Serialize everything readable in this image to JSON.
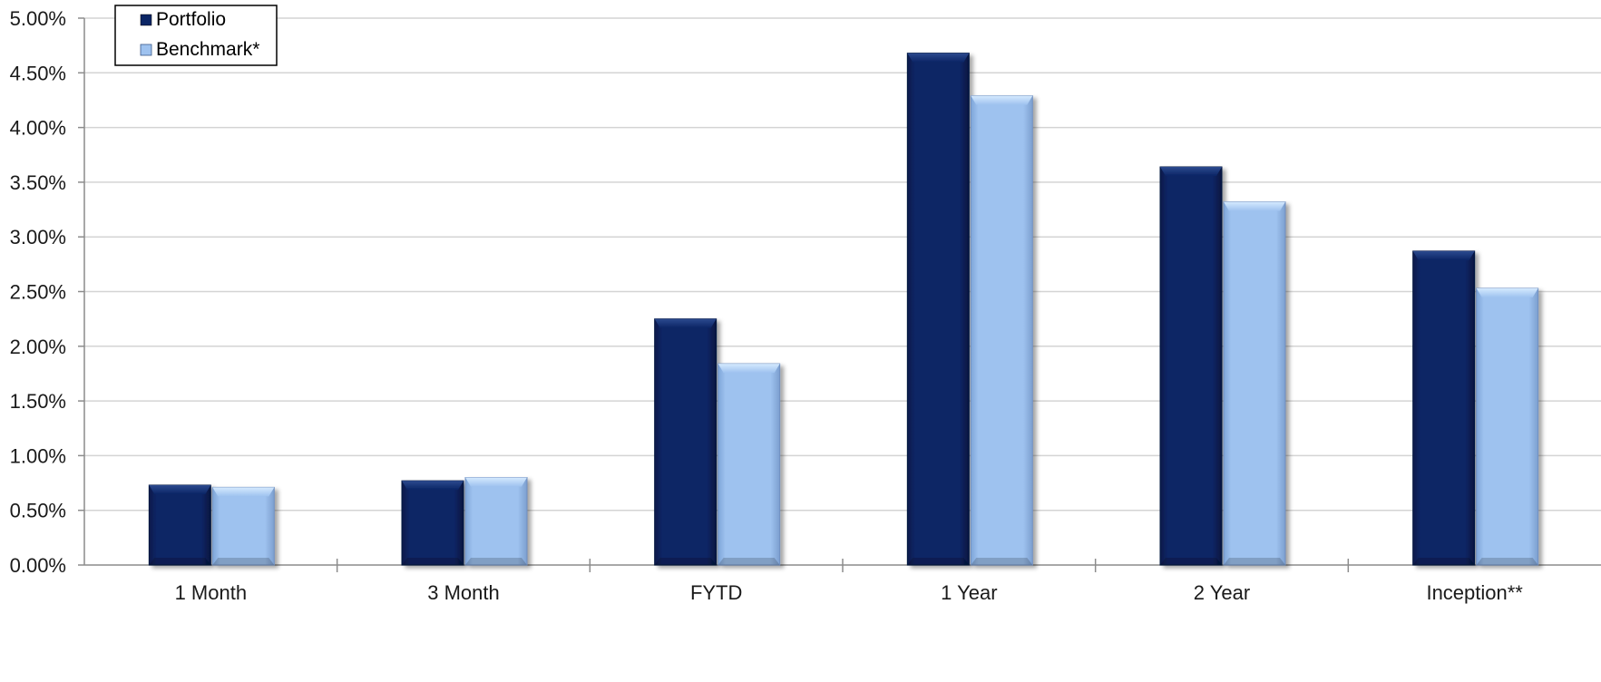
{
  "chart_data": {
    "type": "bar",
    "title": "",
    "xlabel": "",
    "ylabel": "",
    "categories": [
      "1 Month",
      "3 Month",
      "FYTD",
      "1 Year",
      "2 Year",
      "Inception**"
    ],
    "series": [
      {
        "name": "Portfolio",
        "color": "#0b2565",
        "values": [
          0.73,
          0.77,
          2.25,
          4.68,
          3.64,
          2.87
        ]
      },
      {
        "name": "Benchmark*",
        "color": "#9ec2ef",
        "values": [
          0.71,
          0.8,
          1.84,
          4.29,
          3.32,
          2.53
        ]
      }
    ],
    "ylim": [
      0,
      5
    ],
    "yticks": [
      "0.00%",
      "0.50%",
      "1.00%",
      "1.50%",
      "2.00%",
      "2.50%",
      "3.00%",
      "3.50%",
      "4.00%",
      "4.50%",
      "5.00%"
    ],
    "grid": true,
    "legend_position": "top-left"
  }
}
